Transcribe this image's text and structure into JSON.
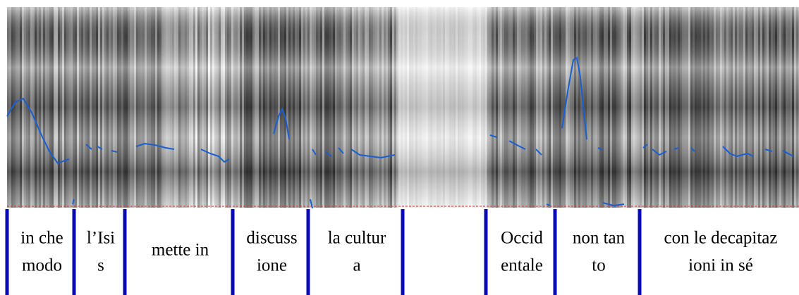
{
  "segments": [
    [
      "in che",
      "modo"
    ],
    [
      "l’Isi",
      "s"
    ],
    [
      "mette in"
    ],
    [
      "discuss",
      "ione"
    ],
    [
      "la cultur",
      "a"
    ],
    [
      "Occid",
      "entale"
    ],
    [
      "non tan",
      "to"
    ],
    [
      "con le decapitaz",
      "ioni in sé"
    ]
  ]
}
